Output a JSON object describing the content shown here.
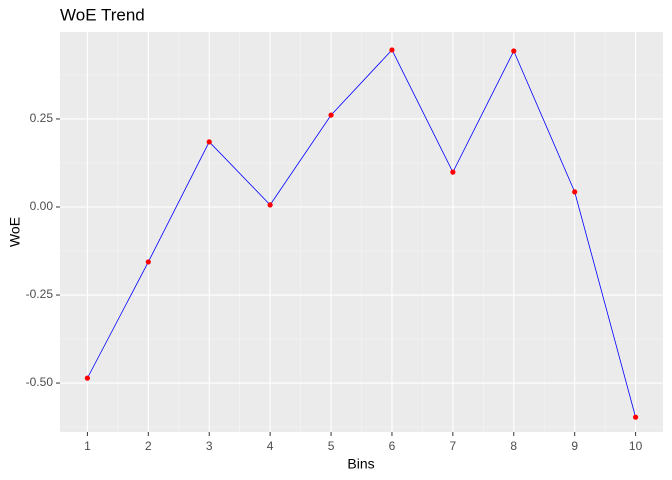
{
  "chart_data": {
    "type": "line",
    "title": "WoE Trend",
    "x_label": "Bins",
    "y_label": "WoE",
    "x": [
      1,
      2,
      3,
      4,
      5,
      6,
      7,
      8,
      9,
      10
    ],
    "series": [
      {
        "name": "WoE",
        "line_color": "#0000ff",
        "point_color": "#ff0000",
        "values": [
          -0.486,
          -0.156,
          0.185,
          0.006,
          0.261,
          0.446,
          0.099,
          0.443,
          0.043,
          -0.597
        ]
      }
    ],
    "xlim": [
      0.55,
      10.45
    ],
    "xticks": [
      1,
      2,
      3,
      4,
      5,
      6,
      7,
      8,
      9,
      10
    ],
    "ylim": [
      -0.639,
      0.497
    ],
    "yticks": [
      {
        "value": -0.5,
        "label": "-0.50"
      },
      {
        "value": -0.25,
        "label": "-0.25"
      },
      {
        "value": 0,
        "label": "0.00"
      },
      {
        "value": 0.25,
        "label": "0.25"
      }
    ],
    "grid": true
  }
}
